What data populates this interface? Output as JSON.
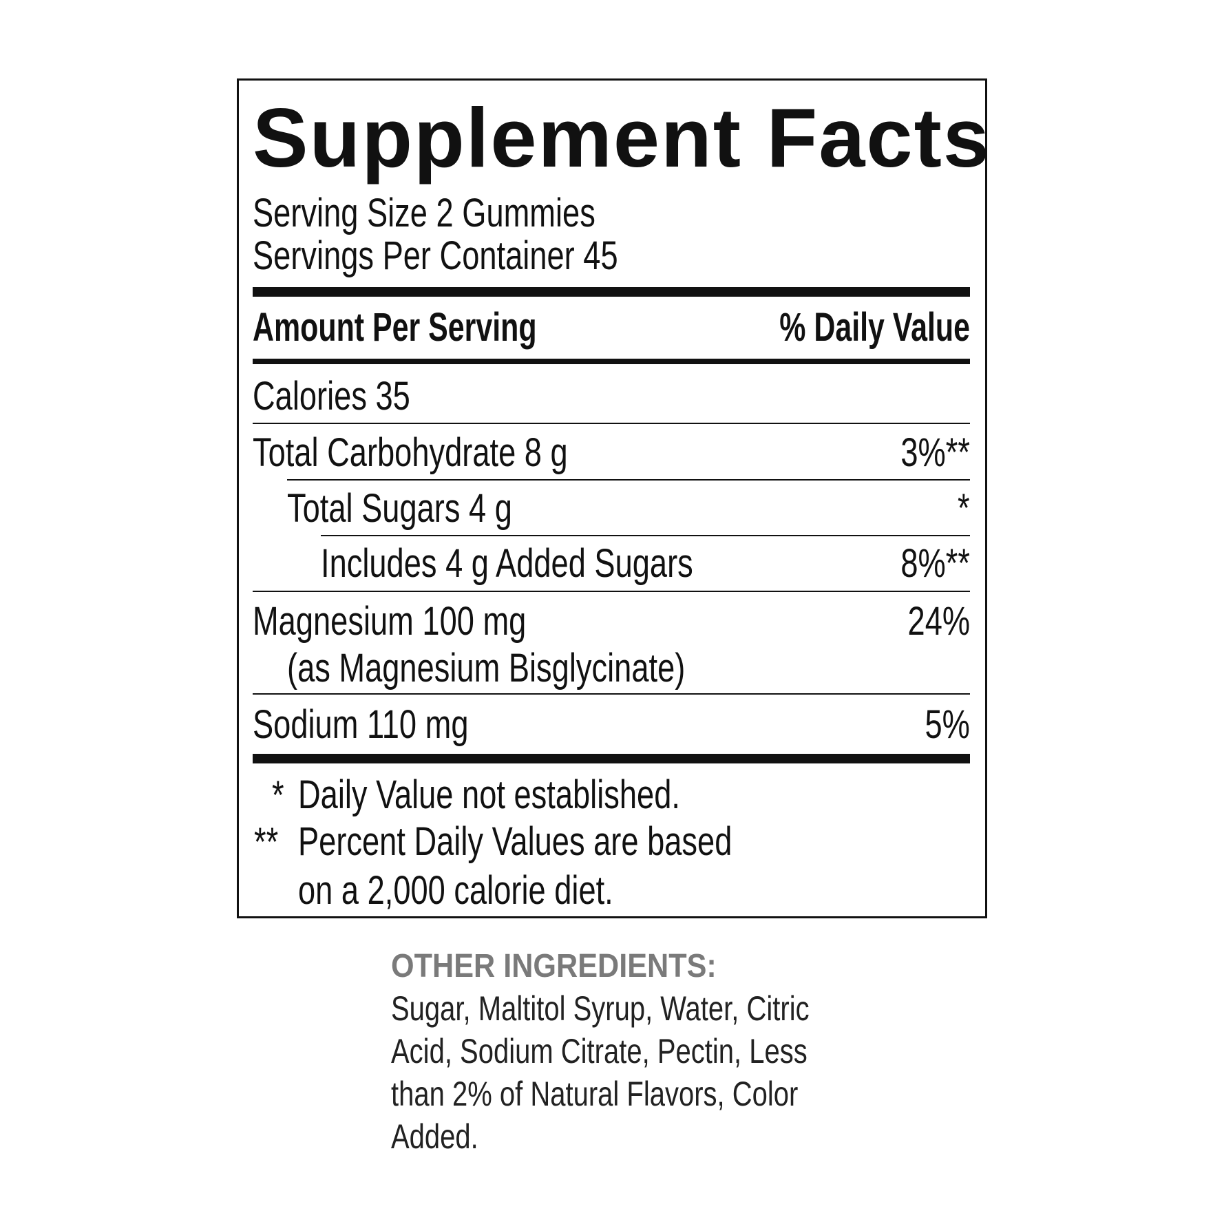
{
  "label": {
    "title": "Supplement Facts",
    "serving_size": "Serving Size 2 Gummies",
    "servings_per_container": "Servings Per Container 45",
    "amount_header": "Amount Per Serving",
    "dv_header": "% Daily Value",
    "rows": [
      {
        "name": "Calories  35",
        "dv": ""
      },
      {
        "name": "Total Carbohydrate  8 g",
        "dv": "3%**"
      },
      {
        "name": "Total Sugars  4 g",
        "dv": "*"
      },
      {
        "name": "Includes 4 g Added Sugars",
        "dv": "8%**"
      },
      {
        "name": "Magnesium  100 mg",
        "sub": "(as Magnesium Bisglycinate)",
        "dv": "24%"
      },
      {
        "name": "Sodium  110 mg",
        "dv": "5%"
      }
    ],
    "footnotes": [
      {
        "mark": "*",
        "text": "Daily Value not established."
      },
      {
        "mark": "**",
        "text": "Percent Daily Values are based"
      },
      {
        "mark": "",
        "text": "on a 2,000 calorie diet."
      }
    ]
  },
  "other_ingredients": {
    "heading": "OTHER INGREDIENTS:",
    "lines": [
      "Sugar, Maltitol Syrup, Water, Citric",
      "Acid, Sodium Citrate, Pectin, Less",
      "than 2% of Natural Flavors, Color",
      "Added."
    ]
  }
}
